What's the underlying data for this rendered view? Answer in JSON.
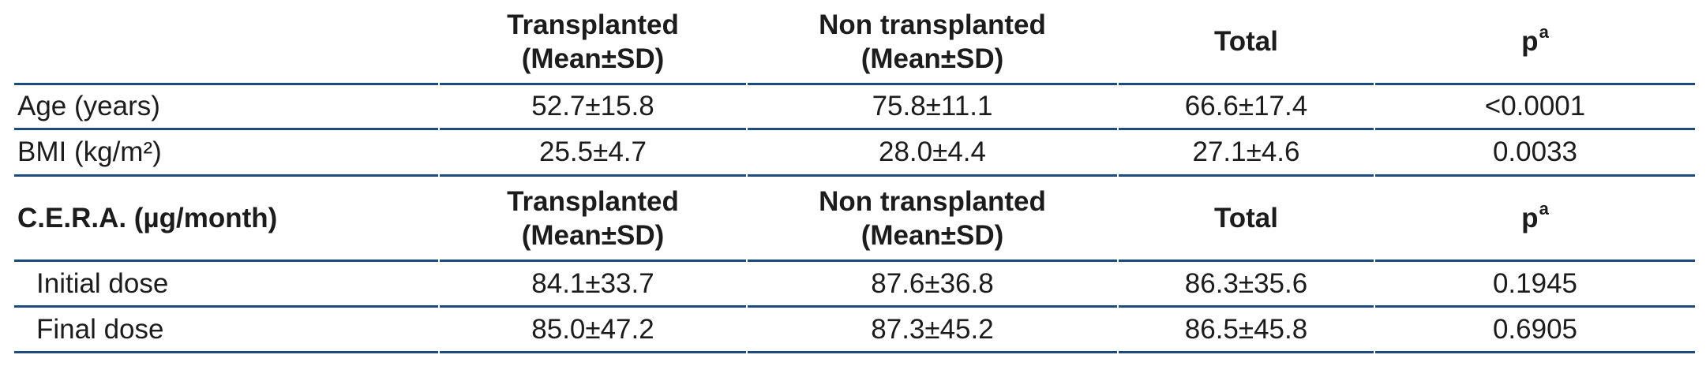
{
  "accent": {
    "rule_color": "#1f4a7d",
    "text_color": "#1c1c1c",
    "background": "#ffffff"
  },
  "table": {
    "sections": [
      {
        "header": {
          "label": "",
          "col_transplanted": [
            "Transplanted",
            "(Mean±SD)"
          ],
          "col_non_transplanted": [
            "Non transplanted",
            "(Mean±SD)"
          ],
          "col_total": "Total",
          "col_p_base": "p",
          "col_p_sup": "a"
        },
        "rows": [
          {
            "label": "Age (years)",
            "values": [
              "52.7±15.8",
              "75.8±11.1",
              "66.6±17.4",
              "<0.0001"
            ]
          },
          {
            "label": "BMI (kg/m²)",
            "values": [
              "25.5±4.7",
              "28.0±4.4",
              "27.1±4.6",
              "0.0033"
            ]
          }
        ]
      },
      {
        "header": {
          "label": "C.E.R.A. (µg/month)",
          "col_transplanted": [
            "Transplanted",
            "(Mean±SD)"
          ],
          "col_non_transplanted": [
            "Non transplanted",
            "(Mean±SD)"
          ],
          "col_total": "Total",
          "col_p_base": "p",
          "col_p_sup": "a"
        },
        "rows": [
          {
            "label": "Initial dose",
            "values": [
              "84.1±33.7",
              "87.6±36.8",
              "86.3±35.6",
              "0.1945"
            ]
          },
          {
            "label": "Final dose",
            "values": [
              "85.0±47.2",
              "87.3±45.2",
              "86.5±45.8",
              "0.6905"
            ]
          }
        ]
      }
    ]
  }
}
